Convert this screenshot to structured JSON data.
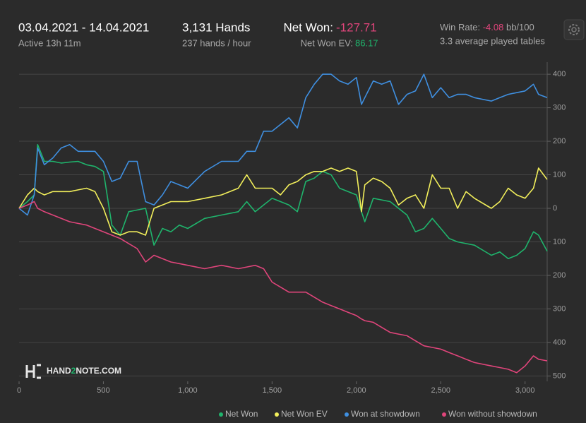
{
  "header": {
    "date_range": "03.04.2021 - 14.04.2021",
    "active": "Active 13h 11m",
    "hands": "3,131 Hands",
    "rate": "237 hands / hour",
    "net_won_label": "Net Won:",
    "net_won_value": "-127.71",
    "ev_label": "Net Won  EV:",
    "ev_value": "86.17",
    "win_rate_label": "Win Rate:",
    "win_rate_value": "-4.08",
    "win_rate_unit": "bb/100",
    "tables": "3.3 average played tables"
  },
  "watermark": {
    "part1": "HAND",
    "part2": "2",
    "part3": "NOTE.COM"
  },
  "chart_data": {
    "type": "line",
    "x": [
      0,
      50,
      90,
      110,
      150,
      200,
      250,
      300,
      350,
      400,
      450,
      500,
      550,
      600,
      650,
      700,
      750,
      800,
      850,
      900,
      950,
      1000,
      1100,
      1200,
      1300,
      1350,
      1400,
      1450,
      1500,
      1550,
      1600,
      1650,
      1700,
      1750,
      1800,
      1850,
      1900,
      1950,
      2000,
      2030,
      2050,
      2100,
      2150,
      2200,
      2250,
      2300,
      2350,
      2400,
      2450,
      2500,
      2550,
      2600,
      2650,
      2700,
      2800,
      2850,
      2900,
      2950,
      3000,
      3050,
      3080,
      3131
    ],
    "series": [
      {
        "name": "Net Won",
        "color": "#1fb46c",
        "values": [
          0,
          20,
          40,
          190,
          140,
          140,
          135,
          138,
          140,
          130,
          125,
          110,
          -50,
          -80,
          -10,
          -5,
          0,
          -110,
          -60,
          -70,
          -50,
          -60,
          -30,
          -20,
          -10,
          20,
          -10,
          10,
          30,
          20,
          10,
          -10,
          80,
          90,
          110,
          100,
          60,
          50,
          40,
          -10,
          -40,
          30,
          25,
          20,
          0,
          -20,
          -70,
          -60,
          -30,
          -60,
          -90,
          -100,
          -105,
          -110,
          -140,
          -130,
          -150,
          -140,
          -120,
          -70,
          -80,
          -128
        ]
      },
      {
        "name": "Net Won  EV",
        "color": "#f2ef5b",
        "values": [
          0,
          40,
          60,
          50,
          40,
          50,
          50,
          50,
          55,
          60,
          50,
          0,
          -70,
          -80,
          -70,
          -70,
          -80,
          0,
          10,
          20,
          20,
          20,
          30,
          40,
          60,
          100,
          60,
          60,
          60,
          40,
          70,
          80,
          100,
          110,
          110,
          120,
          110,
          120,
          110,
          -10,
          70,
          90,
          80,
          60,
          10,
          30,
          40,
          0,
          100,
          60,
          60,
          0,
          50,
          30,
          0,
          20,
          60,
          40,
          30,
          60,
          120,
          86
        ]
      },
      {
        "name": "Won at showdown",
        "color": "#3f8fe0",
        "values": [
          0,
          -20,
          40,
          180,
          130,
          150,
          180,
          190,
          170,
          170,
          170,
          140,
          80,
          90,
          140,
          140,
          20,
          10,
          40,
          80,
          70,
          60,
          110,
          140,
          140,
          170,
          170,
          230,
          230,
          250,
          270,
          240,
          330,
          370,
          400,
          400,
          380,
          370,
          390,
          310,
          330,
          380,
          370,
          380,
          310,
          340,
          350,
          400,
          330,
          360,
          330,
          340,
          340,
          330,
          320,
          330,
          340,
          345,
          350,
          370,
          340,
          330
        ]
      },
      {
        "name": "Won without showdown",
        "color": "#e0457b",
        "values": [
          0,
          10,
          20,
          0,
          -10,
          -20,
          -30,
          -40,
          -45,
          -50,
          -60,
          -70,
          -80,
          -90,
          -105,
          -120,
          -160,
          -140,
          -150,
          -160,
          -165,
          -170,
          -180,
          -170,
          -180,
          -175,
          -170,
          -180,
          -220,
          -235,
          -250,
          -250,
          -250,
          -265,
          -280,
          -290,
          -300,
          -310,
          -320,
          -330,
          -335,
          -340,
          -355,
          -370,
          -375,
          -380,
          -395,
          -410,
          -415,
          -420,
          -430,
          -440,
          -450,
          -460,
          -470,
          -475,
          -480,
          -490,
          -470,
          -440,
          -450,
          -455
        ]
      }
    ],
    "xlim": [
      0,
      3131
    ],
    "xticks": [
      0,
      500,
      {
        "value": 1000,
        "label": "1,000"
      },
      {
        "value": 1500,
        "label": "1,500"
      },
      {
        "value": 2000,
        "label": "2,000"
      },
      {
        "value": 2500,
        "label": "2,500"
      },
      {
        "value": 3000,
        "label": "3,000"
      }
    ],
    "ylim": [
      -516,
      436
    ],
    "yticks": [
      400,
      300,
      200,
      100,
      0,
      {
        "value": -100,
        "label": "100"
      },
      {
        "value": -200,
        "label": "200"
      },
      {
        "value": -300,
        "label": "300"
      },
      {
        "value": -400,
        "label": "400"
      },
      {
        "value": -500,
        "label": "500"
      }
    ],
    "grid": true
  }
}
